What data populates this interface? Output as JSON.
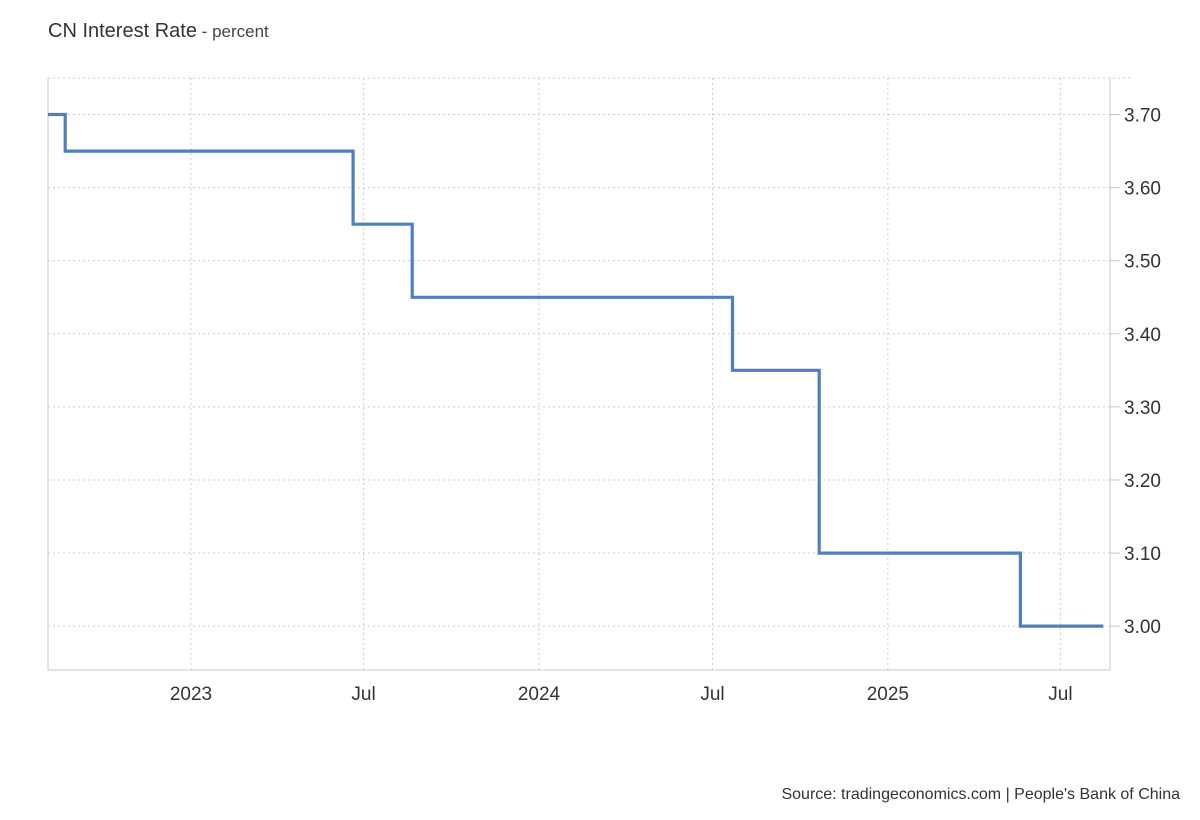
{
  "header": {
    "title": "CN Interest Rate",
    "unit_separator": " - ",
    "unit": "percent"
  },
  "footer": {
    "source": "Source: tradingeconomics.com | People's Bank of China"
  },
  "chart_data": {
    "type": "line",
    "interpolation": "step",
    "title": "CN Interest Rate",
    "subtitle": "percent",
    "xlabel": "",
    "ylabel": "",
    "x_range": [
      "2022-08-04",
      "2025-08-22"
    ],
    "ylim": [
      2.94,
      3.75
    ],
    "y_axis_side": "right",
    "yticks": [
      3.0,
      3.1,
      3.2,
      3.3,
      3.4,
      3.5,
      3.6,
      3.7
    ],
    "ytick_labels": [
      "3.00",
      "3.10",
      "3.20",
      "3.30",
      "3.40",
      "3.50",
      "3.60",
      "3.70"
    ],
    "xticks": [
      {
        "date": "2023-01-01",
        "label": "2023"
      },
      {
        "date": "2023-07-01",
        "label": "Jul"
      },
      {
        "date": "2024-01-01",
        "label": "2024"
      },
      {
        "date": "2024-07-01",
        "label": "Jul"
      },
      {
        "date": "2025-01-01",
        "label": "2025"
      },
      {
        "date": "2025-07-01",
        "label": "Jul"
      }
    ],
    "grid": true,
    "legend": "none",
    "colors": {
      "line": "#4f7fbf",
      "grid": "#cccccc",
      "axis": "#c8c8c8"
    },
    "series": [
      {
        "points": [
          {
            "x": "2022-08-04",
            "y": 3.7
          },
          {
            "x": "2022-08-22",
            "y": 3.65
          },
          {
            "x": "2023-06-20",
            "y": 3.55
          },
          {
            "x": "2023-08-21",
            "y": 3.45
          },
          {
            "x": "2024-07-22",
            "y": 3.35
          },
          {
            "x": "2024-10-21",
            "y": 3.1
          },
          {
            "x": "2025-05-20",
            "y": 3.0
          },
          {
            "x": "2025-08-15",
            "y": 3.0
          }
        ]
      }
    ]
  }
}
